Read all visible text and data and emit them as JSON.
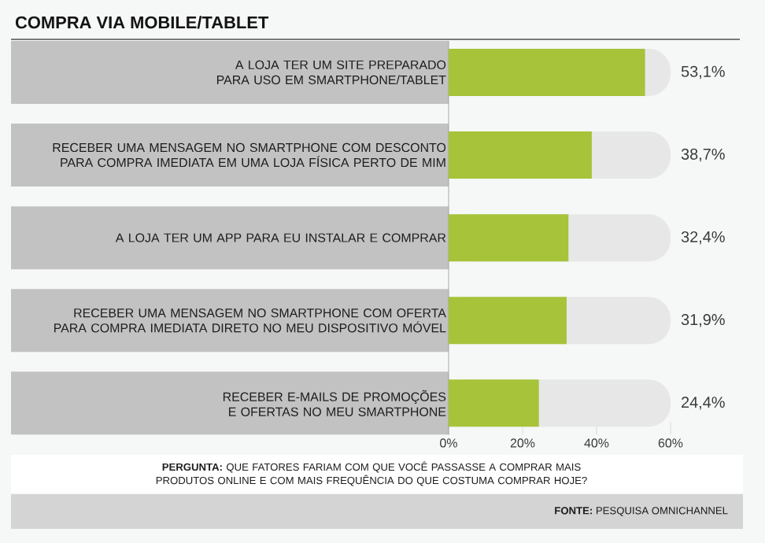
{
  "chart_data": {
    "type": "bar",
    "orientation": "horizontal",
    "title": "COMPRA VIA MOBILE/TABLET",
    "categories": [
      "A LOJA TER UM SITE PREPARADO PARA USO EM SMARTPHONE/TABLET",
      "RECEBER UMA MENSAGEM NO SMARTPHONE COM DESCONTO PARA COMPRA IMEDIATA EM UMA LOJA FÍSICA PERTO DE MIM",
      "A LOJA TER UM APP PARA EU INSTALAR E COMPRAR",
      "RECEBER UMA MENSAGEM NO SMARTPHONE COM OFERTA PARA COMPRA IMEDIATA DIRETO NO MEU DISPOSITIVO MÓVEL",
      "RECEBER E-MAILS DE PROMOÇÕES E OFERTAS NO MEU SMARTPHONE"
    ],
    "values": [
      53.1,
      38.7,
      32.4,
      31.9,
      24.4
    ],
    "value_labels": [
      "53,1%",
      "38,7%",
      "32,4%",
      "31,9%",
      "24,4%"
    ],
    "color": "#a6c33a",
    "xlim": [
      0,
      60
    ],
    "xticks": [
      {
        "value": 0,
        "label": "0%"
      },
      {
        "value": 20,
        "label": "20%"
      },
      {
        "value": 40,
        "label": "40%"
      },
      {
        "value": 60,
        "label": "60%"
      }
    ],
    "annotations": [
      "**PERGUNTA:** QUE FATORES FARIAM COM QUE VOCÊ PASSASSE A COMPRAR MAIS PRODUTOS ONLINE E COM MAIS FREQUÊNCIA DO QUE COSTUMA COMPRAR HOJE?",
      "**FONTE:** PESQUISA OMNICHANNEL"
    ]
  }
}
